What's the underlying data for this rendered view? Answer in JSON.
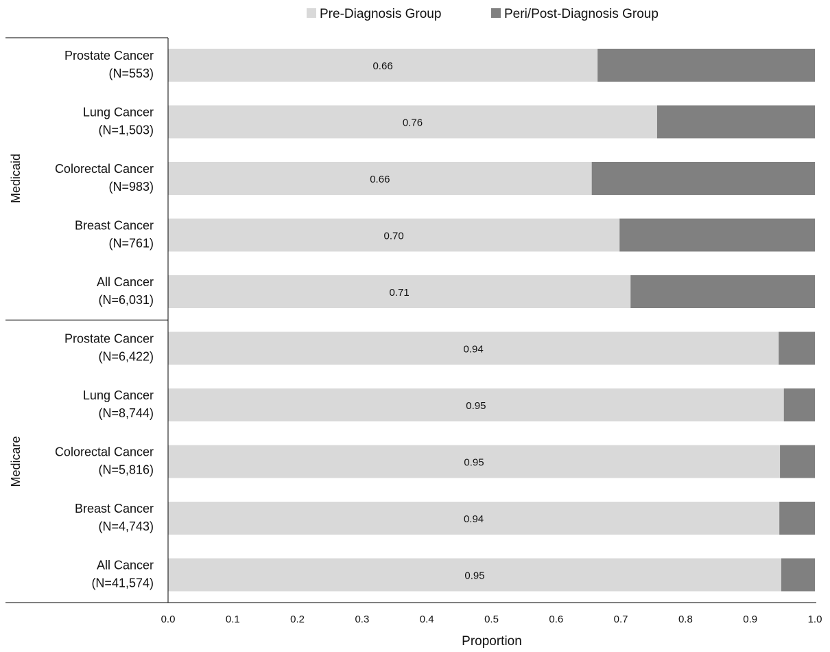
{
  "chart_data": {
    "type": "bar",
    "orientation": "horizontal",
    "stacked": true,
    "xlabel": "Proportion",
    "xlim": [
      0,
      1
    ],
    "x_ticks": [
      "0.0",
      "0.1",
      "0.2",
      "0.3",
      "0.4",
      "0.5",
      "0.6",
      "0.7",
      "0.8",
      "0.9",
      "1.0"
    ],
    "legend_position": "top-center",
    "groups": [
      {
        "name": "Medicaid",
        "rows": [
          0,
          1,
          2,
          3,
          4
        ]
      },
      {
        "name": "Medicare",
        "rows": [
          5,
          6,
          7,
          8,
          9
        ]
      }
    ],
    "categories": [
      [
        "Prostate Cancer",
        "(N=553)"
      ],
      [
        "Lung Cancer",
        "(N=1,503)"
      ],
      [
        "Colorectal Cancer",
        "(N=983)"
      ],
      [
        "Breast Cancer",
        "(N=761)"
      ],
      [
        "All Cancer",
        "(N=6,031)"
      ],
      [
        "Prostate Cancer",
        "(N=6,422)"
      ],
      [
        "Lung Cancer",
        "(N=8,744)"
      ],
      [
        "Colorectal Cancer",
        "(N=5,816)"
      ],
      [
        "Breast Cancer",
        "(N=4,743)"
      ],
      [
        "All Cancer",
        "(N=41,574)"
      ]
    ],
    "series": [
      {
        "name": "Pre-Diagnosis Group",
        "color": "#d9d9d9",
        "values": [
          0.664,
          0.756,
          0.655,
          0.698,
          0.715,
          0.944,
          0.952,
          0.946,
          0.945,
          0.948
        ],
        "labels": [
          "0.66",
          "0.76",
          "0.66",
          "0.70",
          "0.71",
          "0.94",
          "0.95",
          "0.95",
          "0.94",
          "0.95"
        ]
      },
      {
        "name": "Peri/Post-Diagnosis Group",
        "color": "#808080",
        "values": [
          0.336,
          0.244,
          0.345,
          0.302,
          0.285,
          0.056,
          0.048,
          0.054,
          0.055,
          0.052
        ]
      }
    ]
  }
}
